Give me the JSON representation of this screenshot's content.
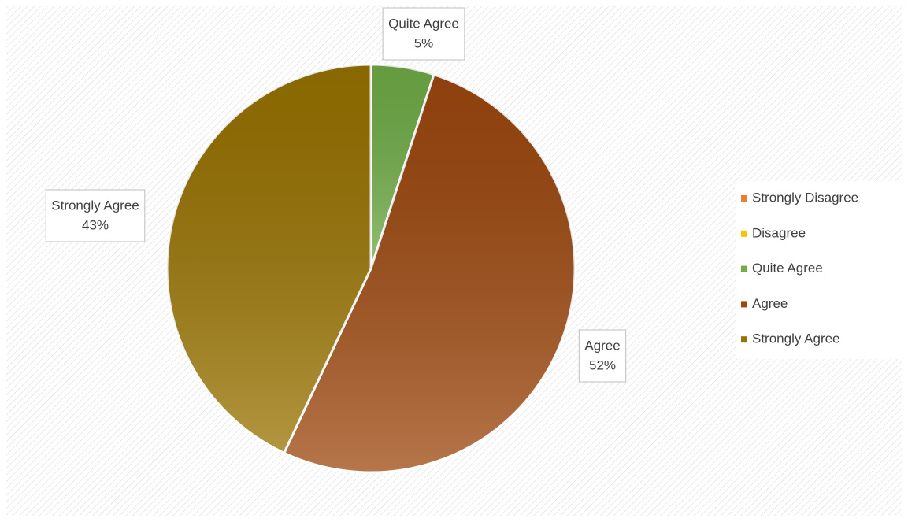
{
  "chart_data": {
    "type": "pie",
    "categories": [
      "Strongly Disagree",
      "Disagree",
      "Quite Agree",
      "Agree",
      "Strongly Agree"
    ],
    "values": [
      0,
      0,
      5,
      52,
      43
    ],
    "value_labels": [
      null,
      null,
      "5%",
      "52%",
      "43%"
    ],
    "colors": [
      "#ed7d31",
      "#ffc000",
      "#70ad47",
      "#9e480e",
      "#997300"
    ],
    "legend": "right"
  }
}
